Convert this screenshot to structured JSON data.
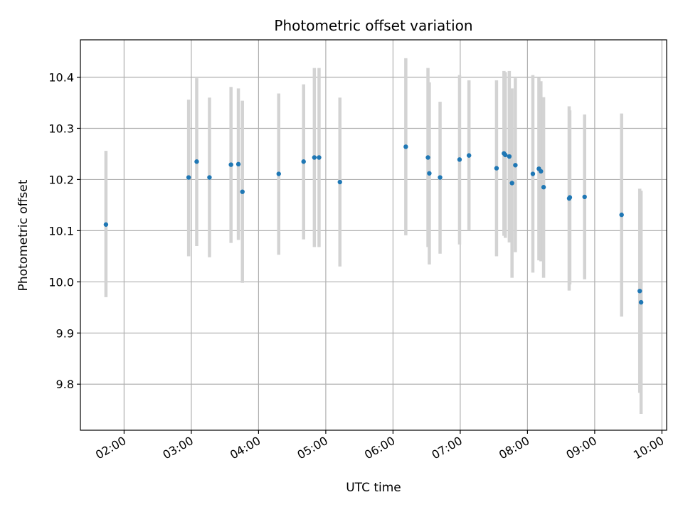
{
  "chart_data": {
    "type": "scatter",
    "title": "Photometric offset variation",
    "xlabel": "UTC time",
    "ylabel": "Photometric offset",
    "grid": true,
    "xlim": [
      1.35,
      10.07
    ],
    "ylim": [
      9.71,
      10.473
    ],
    "xticks": [
      {
        "value": 2,
        "label": "02:00"
      },
      {
        "value": 3,
        "label": "03:00"
      },
      {
        "value": 4,
        "label": "04:00"
      },
      {
        "value": 5,
        "label": "05:00"
      },
      {
        "value": 6,
        "label": "06:00"
      },
      {
        "value": 7,
        "label": "07:00"
      },
      {
        "value": 8,
        "label": "08:00"
      },
      {
        "value": 9,
        "label": "09:00"
      },
      {
        "value": 10,
        "label": "10:00"
      }
    ],
    "yticks": [
      {
        "value": 9.8,
        "label": "9.8"
      },
      {
        "value": 9.9,
        "label": "9.9"
      },
      {
        "value": 10.0,
        "label": "10.0"
      },
      {
        "value": 10.1,
        "label": "10.1"
      },
      {
        "value": 10.2,
        "label": "10.2"
      },
      {
        "value": 10.3,
        "label": "10.3"
      },
      {
        "value": 10.4,
        "label": "10.4"
      }
    ],
    "point_color": "#1f77b4",
    "errorbar_color": "#d3d3d3",
    "points": [
      {
        "x": 1.73,
        "y": 10.112,
        "low": 9.97,
        "high": 10.256
      },
      {
        "x": 2.96,
        "y": 10.204,
        "low": 10.05,
        "high": 10.356
      },
      {
        "x": 3.08,
        "y": 10.235,
        "low": 10.07,
        "high": 10.398
      },
      {
        "x": 3.27,
        "y": 10.204,
        "low": 10.048,
        "high": 10.36
      },
      {
        "x": 3.59,
        "y": 10.229,
        "low": 10.076,
        "high": 10.381
      },
      {
        "x": 3.7,
        "y": 10.23,
        "low": 10.082,
        "high": 10.378
      },
      {
        "x": 3.76,
        "y": 10.176,
        "low": 9.998,
        "high": 10.354
      },
      {
        "x": 4.3,
        "y": 10.211,
        "low": 10.053,
        "high": 10.368
      },
      {
        "x": 4.67,
        "y": 10.235,
        "low": 10.083,
        "high": 10.386
      },
      {
        "x": 4.83,
        "y": 10.243,
        "low": 10.068,
        "high": 10.418
      },
      {
        "x": 4.9,
        "y": 10.243,
        "low": 10.068,
        "high": 10.418
      },
      {
        "x": 5.21,
        "y": 10.195,
        "low": 10.03,
        "high": 10.36
      },
      {
        "x": 6.19,
        "y": 10.264,
        "low": 10.091,
        "high": 10.437
      },
      {
        "x": 6.52,
        "y": 10.243,
        "low": 10.068,
        "high": 10.418
      },
      {
        "x": 6.54,
        "y": 10.212,
        "low": 10.034,
        "high": 10.39
      },
      {
        "x": 6.7,
        "y": 10.204,
        "low": 10.055,
        "high": 10.352
      },
      {
        "x": 6.99,
        "y": 10.239,
        "low": 10.073,
        "high": 10.404
      },
      {
        "x": 7.13,
        "y": 10.247,
        "low": 10.1,
        "high": 10.394
      },
      {
        "x": 7.54,
        "y": 10.222,
        "low": 10.05,
        "high": 10.394
      },
      {
        "x": 7.65,
        "y": 10.251,
        "low": 10.09,
        "high": 10.412
      },
      {
        "x": 7.67,
        "y": 10.248,
        "low": 10.086,
        "high": 10.41
      },
      {
        "x": 7.73,
        "y": 10.245,
        "low": 10.077,
        "high": 10.412
      },
      {
        "x": 7.77,
        "y": 10.193,
        "low": 10.008,
        "high": 10.378
      },
      {
        "x": 7.82,
        "y": 10.228,
        "low": 10.058,
        "high": 10.398
      },
      {
        "x": 8.08,
        "y": 10.211,
        "low": 10.018,
        "high": 10.404
      },
      {
        "x": 8.17,
        "y": 10.221,
        "low": 10.042,
        "high": 10.4
      },
      {
        "x": 8.2,
        "y": 10.216,
        "low": 10.04,
        "high": 10.392
      },
      {
        "x": 8.24,
        "y": 10.185,
        "low": 10.008,
        "high": 10.361
      },
      {
        "x": 8.62,
        "y": 10.163,
        "low": 9.983,
        "high": 10.343
      },
      {
        "x": 8.63,
        "y": 10.165,
        "low": 9.995,
        "high": 10.335
      },
      {
        "x": 8.85,
        "y": 10.166,
        "low": 10.005,
        "high": 10.327
      },
      {
        "x": 9.4,
        "y": 10.131,
        "low": 9.932,
        "high": 10.329
      },
      {
        "x": 9.67,
        "y": 9.982,
        "low": 9.783,
        "high": 10.182
      },
      {
        "x": 9.69,
        "y": 9.96,
        "low": 9.742,
        "high": 10.178
      }
    ]
  }
}
